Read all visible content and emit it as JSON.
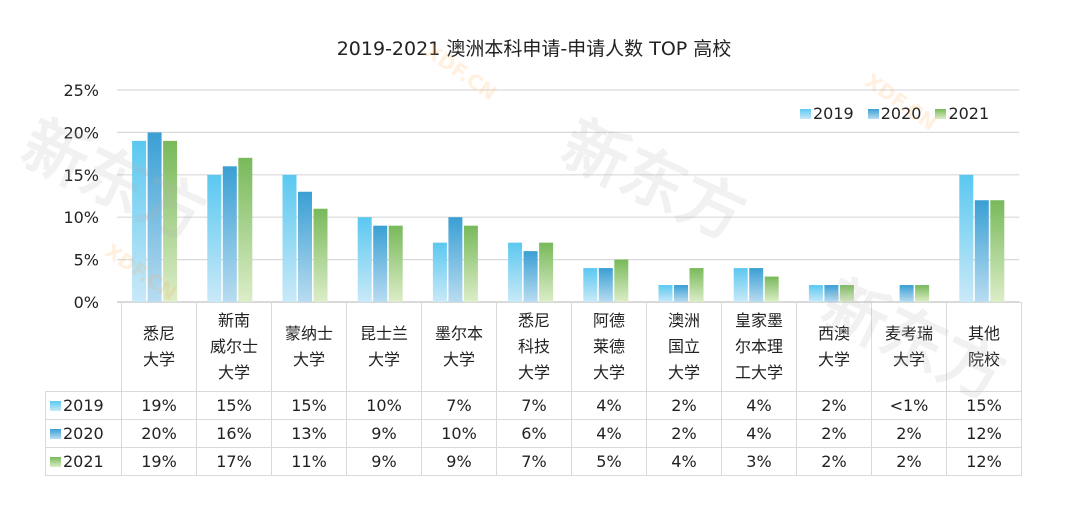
{
  "chart_data": {
    "type": "bar",
    "title": "2019-2021 澳洲本科申请-申请人数 TOP 高校",
    "xlabel": "",
    "ylabel": "",
    "ylim": [
      0,
      25
    ],
    "y_ticks": [
      "0%",
      "5%",
      "10%",
      "15%",
      "20%",
      "25%"
    ],
    "grid": true,
    "legend_position": "top-right",
    "categories": [
      [
        "悉尼",
        "大学"
      ],
      [
        "新南",
        "威尔士",
        "大学"
      ],
      [
        "蒙纳士",
        "大学"
      ],
      [
        "昆士兰",
        "大学"
      ],
      [
        "墨尔本",
        "大学"
      ],
      [
        "悉尼",
        "科技",
        "大学"
      ],
      [
        "阿德",
        "莱德",
        "大学"
      ],
      [
        "澳洲",
        "国立",
        "大学"
      ],
      [
        "皇家墨",
        "尔本理",
        "工大学"
      ],
      [
        "西澳",
        "大学"
      ],
      [
        "麦考瑞",
        "大学"
      ],
      [
        "其他",
        "院校"
      ]
    ],
    "series": [
      {
        "name": "2019",
        "color": "#5bc8f0",
        "values": [
          19,
          15,
          15,
          10,
          7,
          7,
          4,
          2,
          4,
          2,
          0.5,
          15
        ],
        "labels": [
          "19%",
          "15%",
          "15%",
          "10%",
          "7%",
          "7%",
          "4%",
          "2%",
          "4%",
          "2%",
          "<1%",
          "15%"
        ]
      },
      {
        "name": "2020",
        "color": "#3a9fd4",
        "values": [
          20,
          16,
          13,
          9,
          10,
          6,
          4,
          2,
          4,
          2,
          2,
          12
        ],
        "labels": [
          "20%",
          "16%",
          "13%",
          "9%",
          "10%",
          "6%",
          "4%",
          "2%",
          "4%",
          "2%",
          "2%",
          "12%"
        ]
      },
      {
        "name": "2021",
        "color": "#78b95a",
        "values": [
          19,
          17,
          11,
          9,
          9,
          7,
          5,
          4,
          3,
          2,
          2,
          12
        ],
        "labels": [
          "19%",
          "17%",
          "11%",
          "9%",
          "9%",
          "7%",
          "5%",
          "4%",
          "3%",
          "2%",
          "2%",
          "12%"
        ]
      }
    ]
  },
  "watermark": {
    "brand": "新东方",
    "site": "XDF.CN"
  }
}
